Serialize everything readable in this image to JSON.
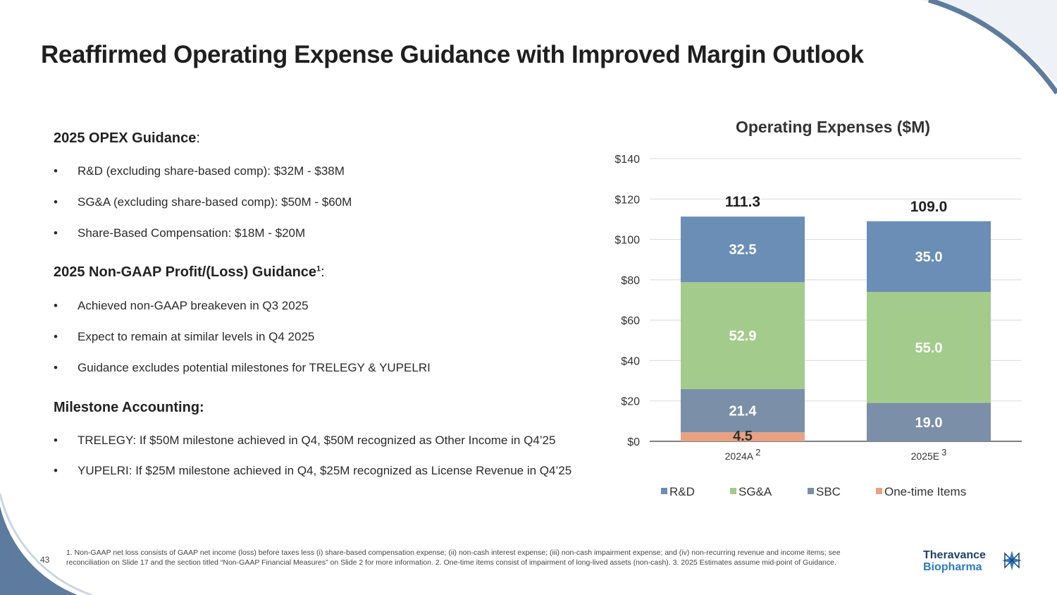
{
  "slide_title": "Reaffirmed Operating Expense Guidance with Improved Margin Outlook",
  "sections": [
    {
      "heading": "2025 OPEX Guidance",
      "heading_suffix": ":",
      "superscript": "",
      "bullets": [
        "R&D (excluding share-based comp): $32M - $38M",
        "SG&A (excluding share-based comp): $50M - $60M",
        "Share-Based Compensation: $18M - $20M"
      ]
    },
    {
      "heading": "2025 Non-GAAP Profit/(Loss) Guidance",
      "heading_suffix": ":",
      "superscript": "1",
      "bullets": [
        "Achieved non-GAAP breakeven in Q3 2025",
        "Expect to remain at similar levels in Q4 2025",
        "Guidance excludes potential milestones for TRELEGY & YUPELRI"
      ]
    },
    {
      "heading": "Milestone Accounting:",
      "heading_suffix": "",
      "superscript": "",
      "bullets": [
        "TRELEGY: If $50M milestone achieved in Q4, $50M recognized as Other Income in Q4’25",
        "YUPELRI: If $25M milestone achieved in Q4, $25M recognized as License Revenue in Q4’25"
      ]
    }
  ],
  "bullet_glyph": "•",
  "chart_data": {
    "type": "bar",
    "stacked": true,
    "title": "Operating Expenses ($M)",
    "categories": [
      "2024A",
      "2025E"
    ],
    "category_superscripts": [
      "2",
      "3"
    ],
    "series": [
      {
        "name": "One-time Items",
        "values": [
          4.5,
          0
        ],
        "labels": [
          "4.5",
          ""
        ],
        "color": "#e8a283"
      },
      {
        "name": "SBC",
        "values": [
          21.4,
          19.0
        ],
        "labels": [
          "21.4",
          "19.0"
        ],
        "color": "#7b8fa8"
      },
      {
        "name": "SG&A",
        "values": [
          52.9,
          55.0
        ],
        "labels": [
          "52.9",
          "55.0"
        ],
        "color": "#a3cb8b"
      },
      {
        "name": "R&D",
        "values": [
          32.5,
          35.0
        ],
        "labels": [
          "32.5",
          "35.0"
        ],
        "color": "#6a8eb5"
      }
    ],
    "legend_order": [
      "R&D",
      "SG&A",
      "SBC",
      "One-time Items"
    ],
    "totals": [
      "111.3",
      "109.0"
    ],
    "ylim": [
      0,
      140
    ],
    "yticks": [
      0,
      20,
      40,
      60,
      80,
      100,
      120,
      140
    ],
    "ytick_labels": [
      "$0",
      "$20",
      "$40",
      "$60",
      "$80",
      "$100",
      "$120",
      "$140"
    ],
    "grid": true,
    "legend_position": "bottom"
  },
  "footnote": "1. Non-GAAP net loss consists of GAAP net income (loss) before taxes less (i) share-based compensation expense; (ii) non-cash interest expense; (iii) non-cash impairment expense; and (iv) non-recurring revenue and income items; see reconciliation on Slide 17 and the section titled “Non-GAAP Financial Measures” on Slide 2 for more information. 2. One-time items consist of impairment of long-lived assets (non-cash). 3. 2025 Estimates assume mid-point of Guidance.",
  "page_number": "43",
  "logo": {
    "line1": "Theravance",
    "line2": "Biopharma"
  },
  "colors": {
    "arc_outer": "#5d7b9e",
    "arc_light": "#c9d6e3",
    "logo_dark": "#1f3f6e",
    "logo_blue": "#2a7bc4"
  }
}
